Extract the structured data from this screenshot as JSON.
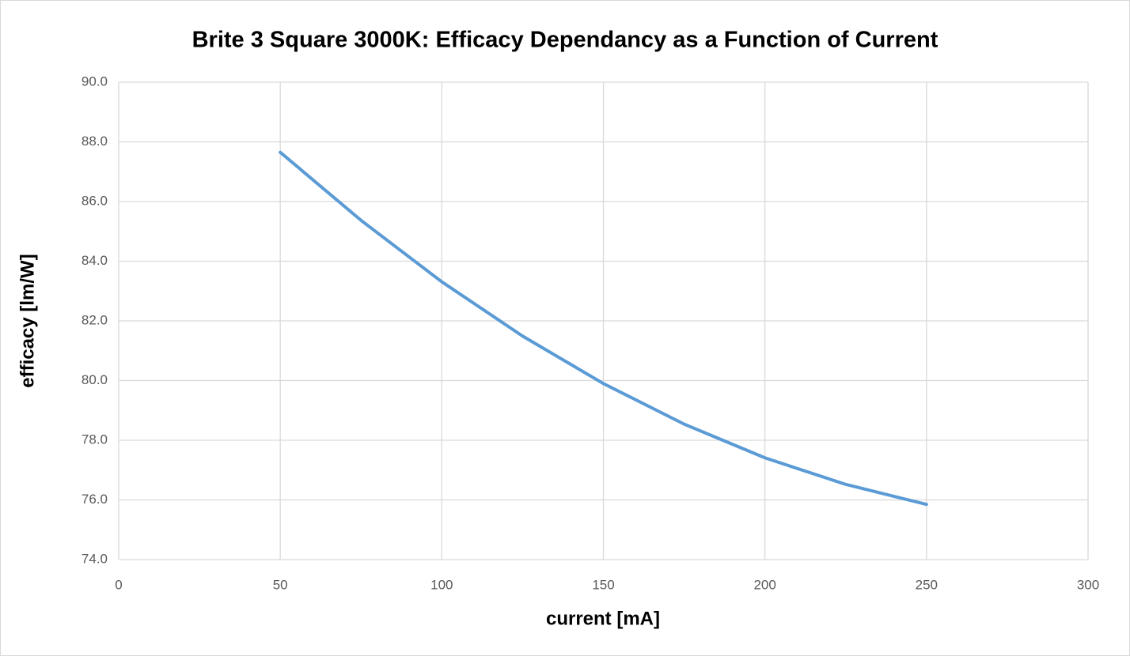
{
  "chart_data": {
    "type": "line",
    "title": "Brite 3 Square 3000K: Efficacy Dependancy as a Function of Current",
    "x_label": "current [mA]",
    "y_label": "efficacy [lm/W]",
    "x": [
      50,
      75,
      100,
      125,
      150,
      175,
      200,
      225,
      250
    ],
    "series": [
      {
        "name": "efficacy",
        "color": "#5b9bd5",
        "values": [
          87.65,
          85.37,
          83.31,
          81.49,
          79.9,
          78.54,
          77.41,
          76.52,
          75.85
        ]
      }
    ],
    "xlim": [
      0,
      300
    ],
    "xticks": [
      0,
      50,
      100,
      150,
      200,
      250,
      300
    ],
    "ylim": [
      74,
      90
    ],
    "yticks": [
      {
        "value": 74,
        "label": "74.0"
      },
      {
        "value": 76,
        "label": "76.0"
      },
      {
        "value": 78,
        "label": "78.0"
      },
      {
        "value": 80,
        "label": "80.0"
      },
      {
        "value": 82,
        "label": "82.0"
      },
      {
        "value": 84,
        "label": "84.0"
      },
      {
        "value": 86,
        "label": "86.0"
      },
      {
        "value": 88,
        "label": "88.0"
      },
      {
        "value": 90,
        "label": "90.0"
      }
    ],
    "grid": true
  }
}
